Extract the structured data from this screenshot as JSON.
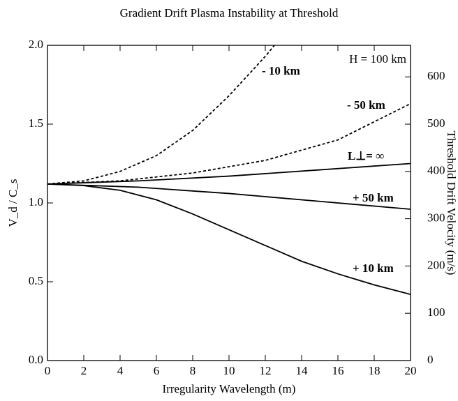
{
  "chart_data": {
    "type": "line",
    "title": "Gradient Drift Plasma Instability at Threshold",
    "x_label": "Irregularity Wavelength (m)",
    "y_label": "V_d / C_s",
    "y2_label": "Threshold Drift Velocity (m/s)",
    "annotation": "H = 100  km",
    "xlim": [
      0,
      20
    ],
    "xticks": [
      0,
      2,
      4,
      6,
      8,
      10,
      12,
      14,
      16,
      18,
      20
    ],
    "ylim": [
      0,
      2
    ],
    "yticks": [
      {
        "value": 0,
        "label": "0.0"
      },
      {
        "value": 0.5,
        "label": "0.5"
      },
      {
        "value": 1,
        "label": "1.0"
      },
      {
        "value": 1.5,
        "label": "1.5"
      },
      {
        "value": 2,
        "label": "2.0"
      }
    ],
    "y2lim": [
      0,
      666.7
    ],
    "y2ticks": [
      0,
      100,
      200,
      300,
      400,
      500,
      600
    ],
    "series": [
      {
        "name": "- 10 km",
        "color": "#000000",
        "dashed": true,
        "x": [
          0,
          2,
          4,
          6,
          8,
          10,
          12,
          12.5
        ],
        "values": [
          1.12,
          1.14,
          1.2,
          1.3,
          1.46,
          1.68,
          1.93,
          2.0
        ]
      },
      {
        "name": "- 50 km",
        "color": "#000000",
        "dashed": true,
        "x": [
          0,
          4,
          8,
          12,
          16,
          20
        ],
        "values": [
          1.12,
          1.14,
          1.19,
          1.27,
          1.4,
          1.63
        ]
      },
      {
        "name": "L⊥= ∞",
        "color": "#000000",
        "dashed": false,
        "x": [
          0,
          5,
          10,
          15,
          20
        ],
        "values": [
          1.12,
          1.14,
          1.17,
          1.21,
          1.25
        ]
      },
      {
        "name": "+ 50 km",
        "color": "#000000",
        "dashed": false,
        "x": [
          0,
          5,
          10,
          15,
          20
        ],
        "values": [
          1.12,
          1.1,
          1.06,
          1.01,
          0.96
        ]
      },
      {
        "name": "+ 10 km",
        "color": "#000000",
        "dashed": false,
        "x": [
          0,
          2,
          4,
          6,
          8,
          10,
          12,
          14,
          16,
          18,
          20
        ],
        "values": [
          1.12,
          1.11,
          1.08,
          1.02,
          0.93,
          0.83,
          0.73,
          0.63,
          0.55,
          0.48,
          0.42
        ]
      }
    ]
  }
}
